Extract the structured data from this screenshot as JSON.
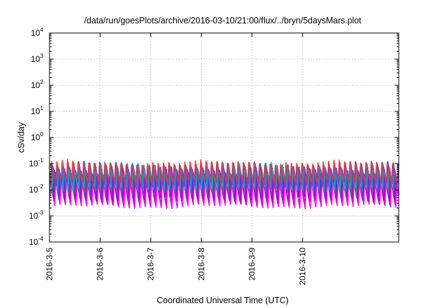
{
  "chart_data": {
    "type": "line",
    "title": "/data/run/goesPlots/archive/2016-03-10/21:00/flux/../bryn/5daysMars.plot",
    "xlabel": "Coordinated Universal Time (UTC)",
    "ylabel": "cSv/day",
    "yscale": "log",
    "ylim": [
      0.0001,
      10000
    ],
    "xlim_days": [
      0,
      6.9
    ],
    "y_ticks": [
      {
        "base": "10",
        "exp": "-4",
        "value": 0.0001
      },
      {
        "base": "10",
        "exp": "-3",
        "value": 0.001
      },
      {
        "base": "10",
        "exp": "-2",
        "value": 0.01
      },
      {
        "base": "10",
        "exp": "-1",
        "value": 0.1
      },
      {
        "base": "10",
        "exp": "0",
        "value": 1
      },
      {
        "base": "10",
        "exp": "1",
        "value": 10
      },
      {
        "base": "10",
        "exp": "2",
        "value": 100
      },
      {
        "base": "10",
        "exp": "3",
        "value": 1000
      },
      {
        "base": "10",
        "exp": "4",
        "value": 10000
      }
    ],
    "x_ticks": [
      {
        "label": "2016-3-5",
        "day": 0
      },
      {
        "label": "2016-3-6",
        "day": 1
      },
      {
        "label": "2016-3-7",
        "day": 2
      },
      {
        "label": "2016-3-8",
        "day": 3
      },
      {
        "label": "2016-3-9",
        "day": 4
      },
      {
        "label": "2016-3-10",
        "day": 5
      }
    ],
    "grid": true,
    "cycles_per_day": 9.5,
    "series": [
      {
        "color": "#ff00ff",
        "peak": 0.03,
        "trough": 0.0022
      },
      {
        "color": "#dd00dd",
        "peak": 0.04,
        "trough": 0.003
      },
      {
        "color": "#b000c0",
        "peak": 0.055,
        "trough": 0.0042
      },
      {
        "color": "#8a2be2",
        "peak": 0.07,
        "trough": 0.006
      },
      {
        "color": "#2e8b57",
        "peak": 0.08,
        "trough": 0.0085
      },
      {
        "color": "#00bcd4",
        "peak": 0.095,
        "trough": 0.011
      },
      {
        "color": "#3355ee",
        "peak": 0.105,
        "trough": 0.015
      },
      {
        "color": "#ff3030",
        "peak": 0.115,
        "trough": 0.02
      }
    ]
  }
}
